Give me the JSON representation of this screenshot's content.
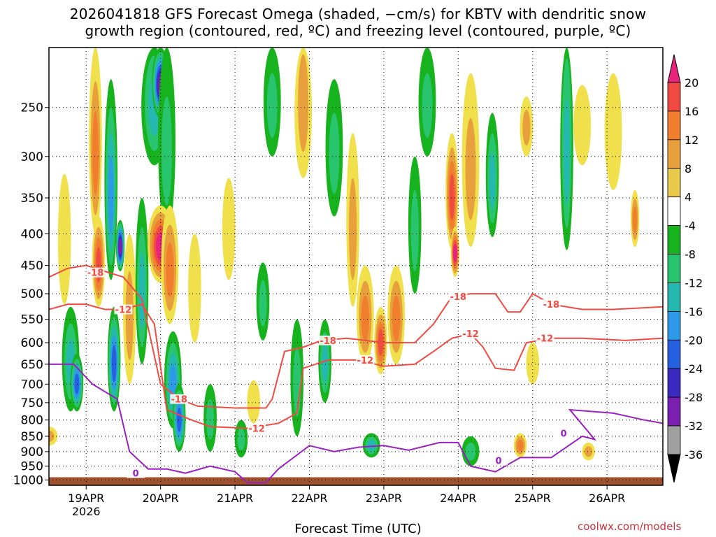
{
  "title_line1": "2026041818 GFS Forecast Omega (shaded, −cm/s) for KBTV with dendritic snow",
  "title_line2": "growth region (contoured, red, ºC) and freezing level (contoured, purple, ºC)",
  "credit": "coolwx.com/models",
  "chart_data": {
    "type": "heatmap",
    "xlabel": "Forecast Time (UTC)",
    "ylabel": "",
    "y_log_pressure": true,
    "y_ticks": [
      250,
      300,
      350,
      400,
      450,
      500,
      550,
      600,
      650,
      700,
      750,
      800,
      850,
      900,
      950,
      1000
    ],
    "y_range": [
      200,
      1020
    ],
    "x_range_hours": [
      -12,
      186
    ],
    "x_ticks": [
      {
        "label": "19APR",
        "sub": "2026",
        "hour": 0
      },
      {
        "label": "20APR",
        "hour": 24
      },
      {
        "label": "21APR",
        "hour": 48
      },
      {
        "label": "22APR",
        "hour": 72
      },
      {
        "label": "23APR",
        "hour": 96
      },
      {
        "label": "24APR",
        "hour": 120
      },
      {
        "label": "25APR",
        "hour": 144
      },
      {
        "label": "26APR",
        "hour": 168
      }
    ],
    "grid": true,
    "colorbar": {
      "levels": [
        20,
        16,
        12,
        8,
        4,
        -4,
        -8,
        -12,
        -16,
        -20,
        -24,
        -28,
        -32,
        -36
      ],
      "colors": [
        "#e8237d",
        "#f04b43",
        "#f07e2c",
        "#e8a03c",
        "#e8c94a",
        "#f0e04b",
        "#ffffff",
        "#16b31e",
        "#29c46e",
        "#25b8b0",
        "#2c9ae6",
        "#2560e0",
        "#3a2ac0",
        "#7a1fb0",
        "#9a1fc0",
        "#a0a0a0",
        "#000000"
      ]
    },
    "omega_blobs": [
      {
        "h": -12,
        "p": 850,
        "w": 2,
        "dp": 60,
        "v": 8
      },
      {
        "h": -7,
        "p": 420,
        "w": 1.5,
        "dp": 200,
        "v": 6
      },
      {
        "h": -5,
        "p": 650,
        "w": 2,
        "dp": 250,
        "v": -12
      },
      {
        "h": -3,
        "p": 700,
        "w": 1.5,
        "dp": 150,
        "v": -20
      },
      {
        "h": 3,
        "p": 300,
        "w": 1.5,
        "dp": 200,
        "v": 12
      },
      {
        "h": 4,
        "p": 450,
        "w": 1.5,
        "dp": 150,
        "v": 16
      },
      {
        "h": 8,
        "p": 350,
        "w": 1.5,
        "dp": 250,
        "v": -16
      },
      {
        "h": 9,
        "p": 650,
        "w": 1.5,
        "dp": 250,
        "v": -20
      },
      {
        "h": 11,
        "p": 420,
        "w": 1,
        "dp": 80,
        "v": -28
      },
      {
        "h": 14,
        "p": 550,
        "w": 1.5,
        "dp": 300,
        "v": 8
      },
      {
        "h": 18,
        "p": 500,
        "w": 1.5,
        "dp": 300,
        "v": -12
      },
      {
        "h": 22,
        "p": 250,
        "w": 3,
        "dp": 120,
        "v": -12
      },
      {
        "h": 24,
        "p": 230,
        "w": 2,
        "dp": 60,
        "v": -28
      },
      {
        "h": 26,
        "p": 300,
        "w": 2,
        "dp": 200,
        "v": -8
      },
      {
        "h": 24,
        "p": 420,
        "w": 3,
        "dp": 120,
        "v": 20
      },
      {
        "h": 27,
        "p": 460,
        "w": 2,
        "dp": 200,
        "v": 12
      },
      {
        "h": 28,
        "p": 700,
        "w": 2,
        "dp": 250,
        "v": -16
      },
      {
        "h": 30,
        "p": 800,
        "w": 1.5,
        "dp": 200,
        "v": -20
      },
      {
        "h": 35,
        "p": 500,
        "w": 1.5,
        "dp": 200,
        "v": 6
      },
      {
        "h": 40,
        "p": 800,
        "w": 1.5,
        "dp": 200,
        "v": -8
      },
      {
        "h": 46,
        "p": 400,
        "w": 1.5,
        "dp": 150,
        "v": 6
      },
      {
        "h": 50,
        "p": 860,
        "w": 1.5,
        "dp": 120,
        "v": -8
      },
      {
        "h": 54,
        "p": 750,
        "w": 1.5,
        "dp": 120,
        "v": 6
      },
      {
        "h": 57,
        "p": 520,
        "w": 1.5,
        "dp": 150,
        "v": -8
      },
      {
        "h": 60,
        "p": 250,
        "w": 2,
        "dp": 100,
        "v": -8
      },
      {
        "h": 70,
        "p": 250,
        "w": 2,
        "dp": 150,
        "v": 8
      },
      {
        "h": 68,
        "p": 700,
        "w": 1.5,
        "dp": 300,
        "v": -8
      },
      {
        "h": 77,
        "p": 650,
        "w": 1.5,
        "dp": 200,
        "v": -12
      },
      {
        "h": 80,
        "p": 300,
        "w": 2,
        "dp": 150,
        "v": -8
      },
      {
        "h": 86,
        "p": 400,
        "w": 1.5,
        "dp": 250,
        "v": 8
      },
      {
        "h": 90,
        "p": 550,
        "w": 2,
        "dp": 200,
        "v": 12
      },
      {
        "h": 95,
        "p": 600,
        "w": 1.5,
        "dp": 150,
        "v": 16
      },
      {
        "h": 100,
        "p": 550,
        "w": 2,
        "dp": 200,
        "v": 12
      },
      {
        "h": 92,
        "p": 880,
        "w": 2,
        "dp": 80,
        "v": -12
      },
      {
        "h": 106,
        "p": 400,
        "w": 1.5,
        "dp": 200,
        "v": -8
      },
      {
        "h": 110,
        "p": 250,
        "w": 2,
        "dp": 100,
        "v": -8
      },
      {
        "h": 118,
        "p": 350,
        "w": 1.5,
        "dp": 150,
        "v": 16
      },
      {
        "h": 119,
        "p": 430,
        "w": 1,
        "dp": 80,
        "v": 20
      },
      {
        "h": 124,
        "p": 320,
        "w": 2,
        "dp": 200,
        "v": 8
      },
      {
        "h": 124,
        "p": 900,
        "w": 2,
        "dp": 100,
        "v": -8
      },
      {
        "h": 131,
        "p": 330,
        "w": 1.5,
        "dp": 150,
        "v": -12
      },
      {
        "h": 140,
        "p": 880,
        "w": 1.5,
        "dp": 80,
        "v": 12
      },
      {
        "h": 142,
        "p": 270,
        "w": 1.5,
        "dp": 60,
        "v": 8
      },
      {
        "h": 144,
        "p": 650,
        "w": 1.5,
        "dp": 100,
        "v": 6
      },
      {
        "h": 155,
        "p": 300,
        "w": 1.5,
        "dp": 250,
        "v": -12
      },
      {
        "h": 160,
        "p": 270,
        "w": 2,
        "dp": 80,
        "v": 6
      },
      {
        "h": 162,
        "p": 900,
        "w": 1.5,
        "dp": 60,
        "v": 8
      },
      {
        "h": 170,
        "p": 280,
        "w": 2,
        "dp": 120,
        "v": 6
      },
      {
        "h": 177,
        "p": 380,
        "w": 1,
        "dp": 80,
        "v": 12
      }
    ],
    "contours": [
      {
        "label": "-18",
        "color": "#f04b43",
        "points": [
          [
            -12,
            470
          ],
          [
            -6,
            455
          ],
          [
            0,
            450
          ],
          [
            6,
            460
          ],
          [
            12,
            470
          ],
          [
            18,
            510
          ],
          [
            24,
            700
          ],
          [
            30,
            740
          ],
          [
            36,
            760
          ],
          [
            48,
            765
          ],
          [
            58,
            765
          ],
          [
            60,
            740
          ],
          [
            64,
            620
          ],
          [
            70,
            610
          ],
          [
            76,
            595
          ],
          [
            84,
            590
          ],
          [
            96,
            600
          ],
          [
            106,
            600
          ],
          [
            112,
            560
          ],
          [
            118,
            505
          ],
          [
            124,
            500
          ],
          [
            132,
            500
          ],
          [
            136,
            535
          ],
          [
            140,
            535
          ],
          [
            144,
            500
          ],
          [
            150,
            520
          ],
          [
            160,
            530
          ],
          [
            170,
            530
          ],
          [
            186,
            525
          ]
        ],
        "labels": [
          [
            3,
            462
          ],
          [
            30,
            740
          ],
          [
            78,
            595
          ],
          [
            120,
            505
          ],
          [
            150,
            520
          ]
        ]
      },
      {
        "label": "-12",
        "color": "#f04b43",
        "points": [
          [
            -12,
            530
          ],
          [
            -6,
            520
          ],
          [
            0,
            520
          ],
          [
            6,
            530
          ],
          [
            12,
            530
          ],
          [
            18,
            520
          ],
          [
            22,
            560
          ],
          [
            26,
            770
          ],
          [
            34,
            800
          ],
          [
            40,
            820
          ],
          [
            52,
            825
          ],
          [
            62,
            810
          ],
          [
            68,
            780
          ],
          [
            70,
            660
          ],
          [
            78,
            640
          ],
          [
            88,
            640
          ],
          [
            96,
            655
          ],
          [
            106,
            650
          ],
          [
            112,
            620
          ],
          [
            118,
            590
          ],
          [
            124,
            580
          ],
          [
            128,
            610
          ],
          [
            132,
            660
          ],
          [
            138,
            665
          ],
          [
            142,
            600
          ],
          [
            150,
            590
          ],
          [
            160,
            590
          ],
          [
            174,
            595
          ],
          [
            186,
            590
          ]
        ],
        "labels": [
          [
            12,
            530
          ],
          [
            55,
            825
          ],
          [
            90,
            640
          ],
          [
            124,
            580
          ],
          [
            148,
            590
          ]
        ]
      },
      {
        "label": "0",
        "color": "#9a1fc0",
        "points": [
          [
            -12,
            650
          ],
          [
            -4,
            650
          ],
          [
            2,
            700
          ],
          [
            10,
            740
          ],
          [
            14,
            900
          ],
          [
            20,
            960
          ],
          [
            26,
            960
          ],
          [
            32,
            975
          ],
          [
            40,
            950
          ],
          [
            48,
            970
          ],
          [
            52,
            1010
          ],
          [
            58,
            1010
          ],
          [
            62,
            960
          ],
          [
            72,
            880
          ],
          [
            80,
            900
          ],
          [
            88,
            885
          ],
          [
            96,
            880
          ],
          [
            104,
            895
          ],
          [
            114,
            870
          ],
          [
            120,
            870
          ],
          [
            124,
            950
          ],
          [
            132,
            970
          ],
          [
            140,
            920
          ],
          [
            150,
            920
          ],
          [
            160,
            850
          ],
          [
            164,
            860
          ],
          [
            156,
            770
          ],
          [
            170,
            780
          ],
          [
            180,
            800
          ],
          [
            186,
            810
          ]
        ],
        "labels": [
          [
            16,
            975
          ],
          [
            154,
            840
          ],
          [
            133,
            930
          ]
        ]
      }
    ],
    "ground": {
      "from_p": 990,
      "to_p": 1020,
      "color": "#a0522d"
    }
  }
}
